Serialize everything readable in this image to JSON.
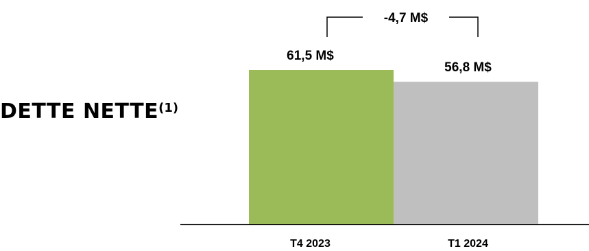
{
  "title": {
    "main": "DETTE NETTE",
    "superscript": "(1)"
  },
  "chart_data": {
    "type": "bar",
    "categories": [
      "T4 2023",
      "T1 2024"
    ],
    "values": [
      61.5,
      56.8
    ],
    "data_labels": [
      "61,5 M$",
      "56,8 M$"
    ],
    "colors": [
      "#9BBB59",
      "#BFBFBF"
    ],
    "ylim": [
      0,
      61.5
    ],
    "annotation": "-4,7 M$",
    "xlabel": "",
    "ylabel": ""
  }
}
